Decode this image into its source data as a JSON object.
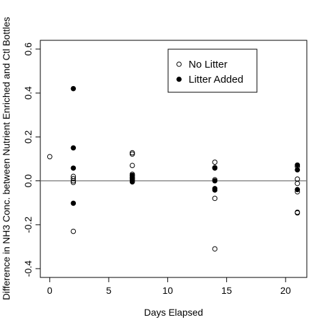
{
  "chart_data": {
    "type": "scatter",
    "xlabel": "Days Elapsed",
    "ylabel": "Difference in NH3 Conc. between Nutrient Enriched and Ctl Bottles",
    "xlim": [
      -0.8,
      21.8
    ],
    "ylim": [
      -0.44,
      0.64
    ],
    "xticks": [
      0,
      5,
      10,
      15,
      20
    ],
    "yticks": [
      -0.4,
      -0.2,
      0.0,
      0.2,
      0.4,
      0.6
    ],
    "ytick_labels": [
      "-0.4",
      "-0.2",
      "0.0",
      "0.2",
      "0.4",
      "0.6"
    ],
    "reference_line_y": 0.0,
    "legend_position": "top-right",
    "series": [
      {
        "name": "No Litter",
        "marker": "open-circle",
        "points": [
          [
            0,
            0.11
          ],
          [
            2,
            0.02
          ],
          [
            2,
            0.01
          ],
          [
            2,
            0.0
          ],
          [
            2,
            -0.007
          ],
          [
            2,
            -0.23
          ],
          [
            7,
            0.128
          ],
          [
            7,
            0.122
          ],
          [
            7,
            0.07
          ],
          [
            7,
            0.03
          ],
          [
            7,
            0.025
          ],
          [
            7,
            0.015
          ],
          [
            7,
            0.008
          ],
          [
            14,
            0.085
          ],
          [
            14,
            0.06
          ],
          [
            14,
            0.005
          ],
          [
            14,
            -0.08
          ],
          [
            14,
            -0.31
          ],
          [
            21,
            0.065
          ],
          [
            21,
            0.008
          ],
          [
            21,
            -0.012
          ],
          [
            21,
            -0.05
          ],
          [
            21,
            -0.143
          ],
          [
            21,
            -0.146
          ]
        ]
      },
      {
        "name": "Litter Added",
        "marker": "filled-circle",
        "points": [
          [
            2,
            0.42
          ],
          [
            2,
            0.15
          ],
          [
            2,
            0.058
          ],
          [
            2,
            -0.102
          ],
          [
            7,
            0.022
          ],
          [
            7,
            0.012
          ],
          [
            7,
            0.005
          ],
          [
            7,
            0.0
          ],
          [
            7,
            -0.005
          ],
          [
            14,
            0.058
          ],
          [
            14,
            0.0
          ],
          [
            14,
            -0.035
          ],
          [
            14,
            -0.042
          ],
          [
            21,
            0.072
          ],
          [
            21,
            0.05
          ],
          [
            21,
            -0.04
          ]
        ]
      }
    ]
  }
}
